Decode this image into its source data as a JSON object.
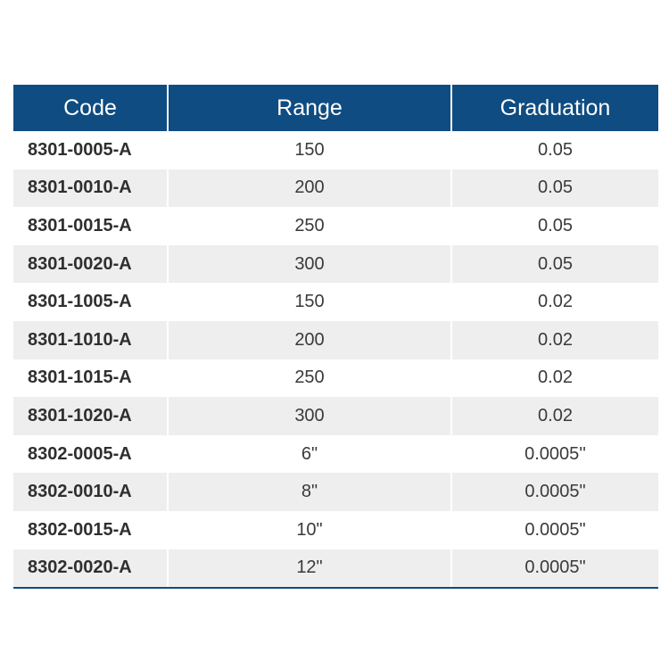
{
  "table": {
    "headers": [
      "Code",
      "Range",
      "Graduation"
    ],
    "rows": [
      [
        "8301-0005-A",
        "150",
        "0.05"
      ],
      [
        "8301-0010-A",
        "200",
        "0.05"
      ],
      [
        "8301-0015-A",
        "250",
        "0.05"
      ],
      [
        "8301-0020-A",
        "300",
        "0.05"
      ],
      [
        "8301-1005-A",
        "150",
        "0.02"
      ],
      [
        "8301-1010-A",
        "200",
        "0.02"
      ],
      [
        "8301-1015-A",
        "250",
        "0.02"
      ],
      [
        "8301-1020-A",
        "300",
        "0.02"
      ],
      [
        "8302-0005-A",
        "6\"",
        "0.0005''"
      ],
      [
        "8302-0010-A",
        "8\"",
        "0.0005\""
      ],
      [
        "8302-0015-A",
        "10\"",
        "0.0005\""
      ],
      [
        "8302-0020-A",
        "12\"",
        "0.0005\""
      ]
    ]
  },
  "colors": {
    "header_background": "#0f4c81",
    "header_text": "#ffffff",
    "stripe": "#eeeeee"
  }
}
